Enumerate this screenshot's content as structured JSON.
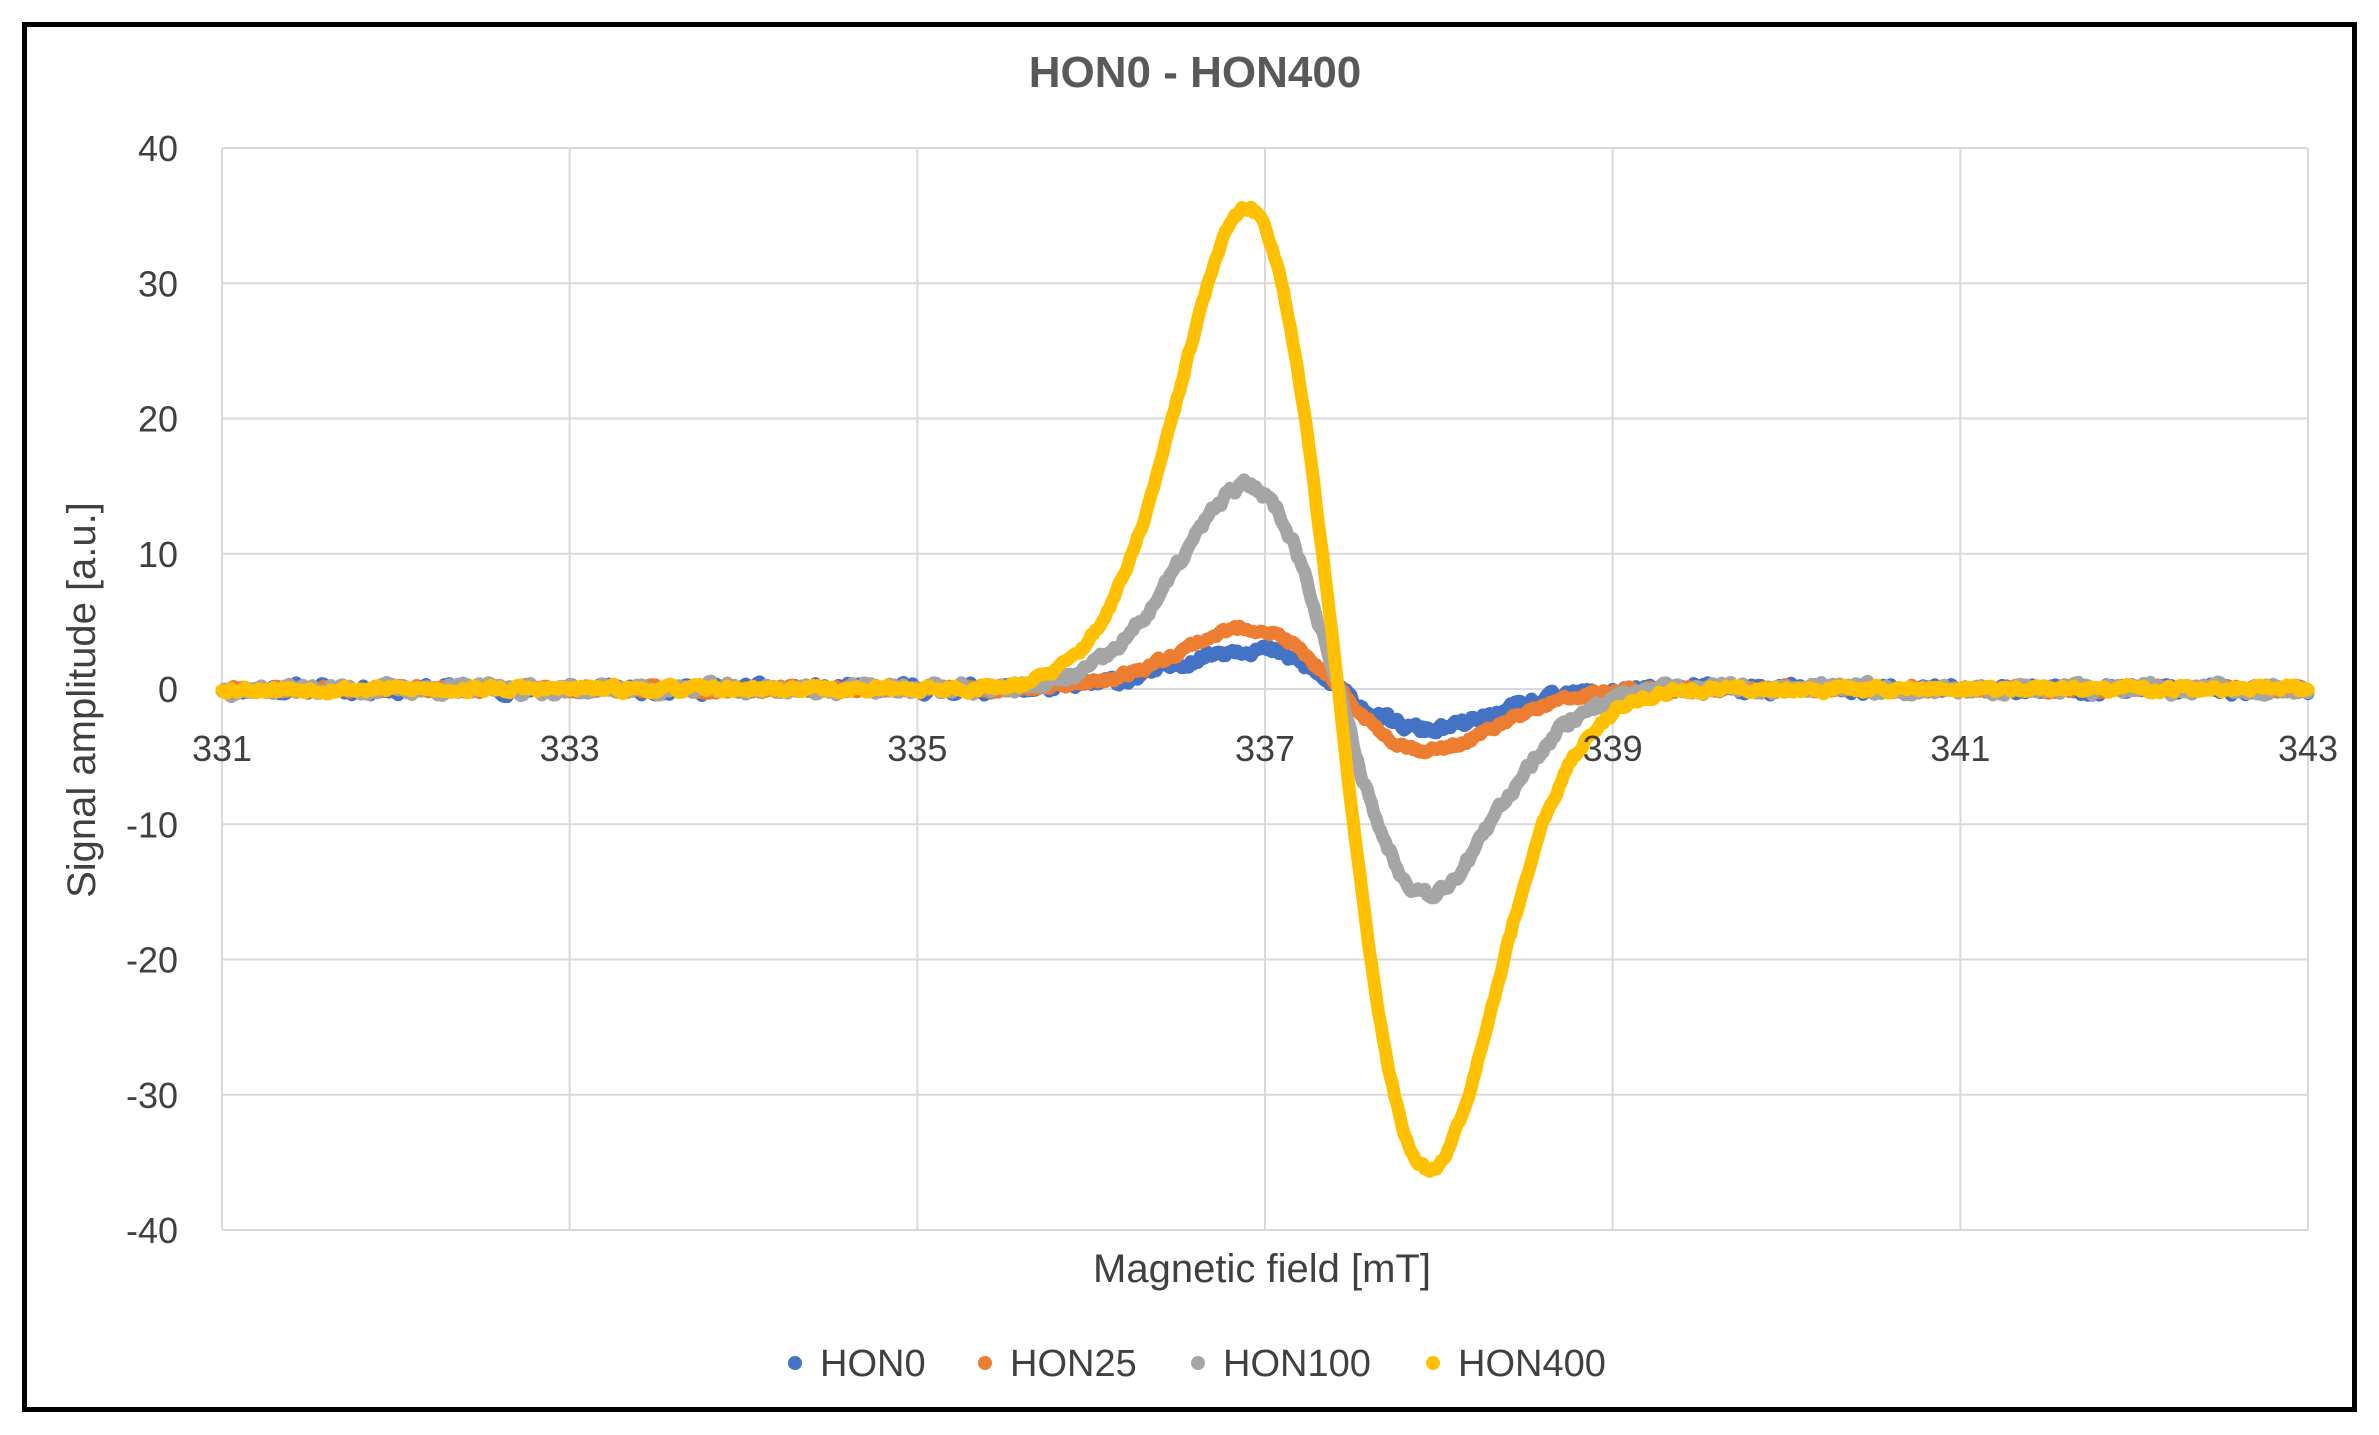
{
  "chart_data": {
    "type": "scatter",
    "title": "HON0 - HON400",
    "xlabel": "Magnetic field [mT]",
    "ylabel": "Signal amplitude [a.u.]",
    "xlim": [
      331,
      343
    ],
    "ylim": [
      -40,
      40
    ],
    "xticks": [
      331,
      333,
      335,
      337,
      339,
      341,
      343
    ],
    "yticks": [
      40,
      30,
      20,
      10,
      0,
      -10,
      -20,
      -30,
      -40
    ],
    "grid": true,
    "legend_position": "bottom",
    "curve_model": {
      "center": 337.42,
      "half_peak_separation": 0.52
    },
    "series": [
      {
        "name": "HON0",
        "color": "#4472C4",
        "amplitude": 3.0,
        "noise": 0.7,
        "seed": 11
      },
      {
        "name": "HON25",
        "color": "#ED7D31",
        "amplitude": 4.5,
        "noise": 0.45,
        "seed": 23
      },
      {
        "name": "HON100",
        "color": "#A5A5A5",
        "amplitude": 15.0,
        "noise": 0.75,
        "seed": 37
      },
      {
        "name": "HON400",
        "color": "#FFC000",
        "amplitude": 35.5,
        "noise": 0.5,
        "seed": 53
      }
    ]
  }
}
